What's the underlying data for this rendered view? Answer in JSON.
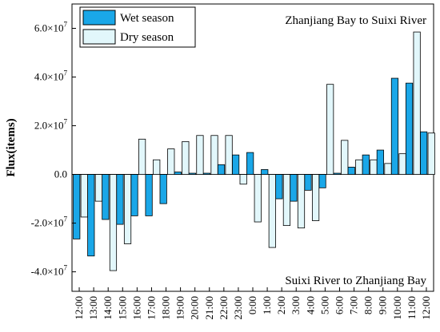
{
  "chart_data": {
    "type": "bar",
    "ylabel": "Flux(items)",
    "ylim": [
      -48000000.0,
      70000000.0
    ],
    "yticks": [
      {
        "value": -40000000.0,
        "label_base": "-4.0×10",
        "label_exp": "7"
      },
      {
        "value": -20000000.0,
        "label_base": "-2.0×10",
        "label_exp": "7"
      },
      {
        "value": 0,
        "label_base": "0.0",
        "label_exp": ""
      },
      {
        "value": 20000000.0,
        "label_base": "2.0×10",
        "label_exp": "7"
      },
      {
        "value": 40000000.0,
        "label_base": "4.0×10",
        "label_exp": "7"
      },
      {
        "value": 60000000.0,
        "label_base": "6.0×10",
        "label_exp": "7"
      }
    ],
    "categories": [
      "12:00",
      "13:00",
      "14:00",
      "15:00",
      "16:00",
      "17:00",
      "18:00",
      "19:00",
      "20:00",
      "21:00",
      "22:00",
      "23:00",
      "0:00",
      "1:00",
      "2:00",
      "3:00",
      "4:00",
      "5:00",
      "6:00",
      "7:00",
      "8:00",
      "9:00",
      "10:00",
      "11:00",
      "12:00"
    ],
    "series": [
      {
        "name": "Wet season",
        "color": "#1aa7e8",
        "values": [
          -26500000.0,
          -33500000.0,
          -18500000.0,
          -20500000.0,
          -17000000.0,
          -17000000.0,
          -12000000.0,
          1000000.0,
          500000.0,
          500000.0,
          4000000.0,
          8000000.0,
          9000000.0,
          2000000.0,
          -10000000.0,
          -11000000.0,
          -6500000.0,
          -5500000.0,
          500000.0,
          3000000.0,
          8000000.0,
          10000000.0,
          39500000.0,
          37500000.0,
          17500000.0
        ]
      },
      {
        "name": "Dry season",
        "color": "#e2f7fb",
        "values": [
          -17500000.0,
          -11000000.0,
          -39500000.0,
          -28500000.0,
          14500000.0,
          6000000.0,
          10500000.0,
          13500000.0,
          16000000.0,
          16000000.0,
          16000000.0,
          -4000000.0,
          -19500000.0,
          -30000000.0,
          -21000000.0,
          -22000000.0,
          -19000000.0,
          37000000.0,
          14000000.0,
          6000000.0,
          6000000.0,
          4500000.0,
          8500000.0,
          58500000.0,
          17000000.0
        ]
      }
    ],
    "annotations": {
      "top_right": "Zhanjiang Bay to Suixi River",
      "bottom_right": "Suixi River to Zhanjiang Bay"
    },
    "legend_position": "top-left",
    "grid": false
  }
}
